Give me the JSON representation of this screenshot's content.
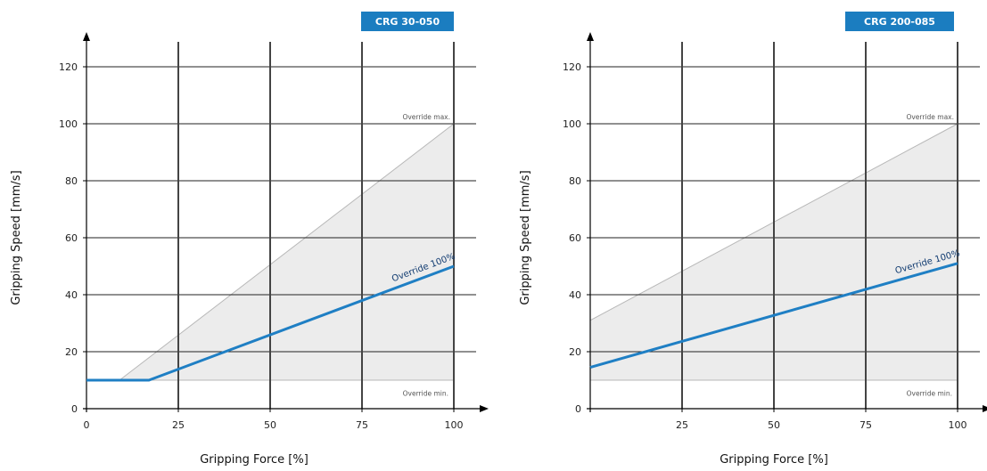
{
  "chart_data": [
    {
      "type": "area",
      "badge": "CRG 30-050",
      "xlabel": "Gripping Force [%]",
      "ylabel": "Gripping Speed [mm/s]",
      "xlim": [
        0,
        100
      ],
      "ylim": [
        0,
        120
      ],
      "xticks": [
        0,
        25,
        50,
        75,
        100
      ],
      "yticks": [
        0,
        20,
        40,
        60,
        80,
        100,
        120
      ],
      "grid": true,
      "override_max_label": "Override max.",
      "override_min_label": "Override min.",
      "override_100_label": "Override 100%",
      "range_upper": {
        "x": [
          9,
          100
        ],
        "y": [
          10,
          100
        ]
      },
      "range_lower": {
        "x": [
          9,
          100
        ],
        "y": [
          10,
          10
        ]
      },
      "series": [
        {
          "name": "Override 100%",
          "x": [
            0,
            17,
            100
          ],
          "y": [
            10,
            10,
            50
          ]
        }
      ],
      "colors": {
        "series": "#1f7fc4",
        "band_fill": "#ececec",
        "band_edge": "#b8b8b8",
        "badge": "#1b7dc0"
      }
    },
    {
      "type": "area",
      "badge": "CRG 200-085",
      "xlabel": "Gripping Force [%]",
      "ylabel": "Gripping Speed [mm/s]",
      "xlim": [
        0,
        100
      ],
      "ylim": [
        0,
        120
      ],
      "xticks": [
        25,
        50,
        75,
        100
      ],
      "yticks": [
        0,
        20,
        40,
        60,
        80,
        100,
        120
      ],
      "grid": true,
      "override_max_label": "Override max.",
      "override_min_label": "Override min.",
      "override_100_label": "Override 100%",
      "range_upper": {
        "x": [
          0,
          100
        ],
        "y": [
          31,
          100
        ]
      },
      "range_lower": {
        "x": [
          0,
          100
        ],
        "y": [
          10,
          10
        ]
      },
      "series": [
        {
          "name": "Override 100%",
          "x": [
            0,
            100
          ],
          "y": [
            14.5,
            51
          ]
        }
      ],
      "colors": {
        "series": "#1f7fc4",
        "band_fill": "#ececec",
        "band_edge": "#b8b8b8",
        "badge": "#1b7dc0"
      }
    }
  ]
}
